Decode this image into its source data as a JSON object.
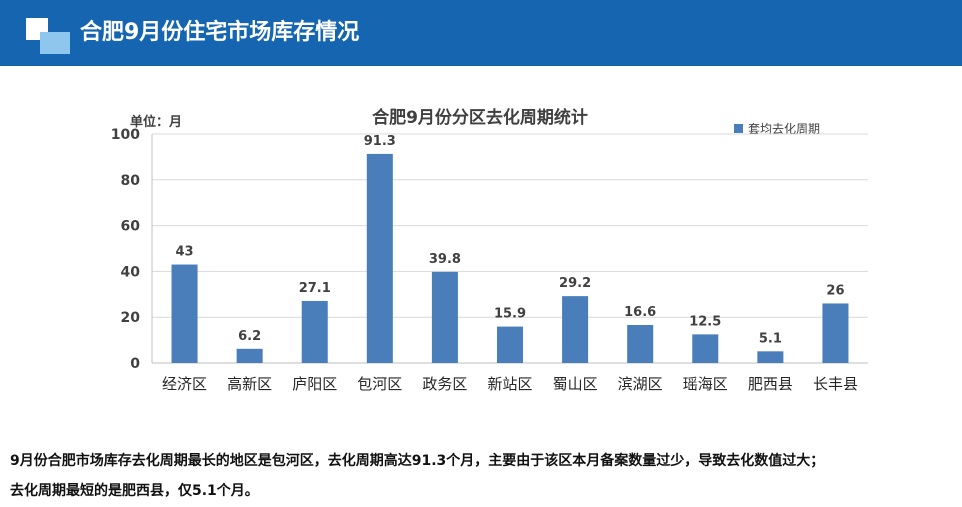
{
  "header": {
    "title": "合肥9月份住宅市场库存情况"
  },
  "chart_data": {
    "type": "bar",
    "title": "合肥9月份分区去化周期统计",
    "unit_label": "单位：月",
    "categories": [
      "经济区",
      "高新区",
      "庐阳区",
      "包河区",
      "政务区",
      "新站区",
      "蜀山区",
      "滨湖区",
      "瑶海区",
      "肥西县",
      "长丰县"
    ],
    "series": [
      {
        "name": "套均去化周期",
        "values": [
          43,
          6.2,
          27.1,
          91.3,
          39.8,
          15.9,
          29.2,
          16.6,
          12.5,
          5.1,
          26
        ],
        "color": "#4a7ebb"
      }
    ],
    "data_labels": [
      "43",
      "6.2",
      "27.1",
      "91.3",
      "39.8",
      "15.9",
      "29.2",
      "16.6",
      "12.5",
      "5.1",
      "26"
    ],
    "ylim": [
      0,
      100
    ],
    "yticks": [
      0,
      20,
      40,
      60,
      80,
      100
    ],
    "grid": true,
    "legend_position": "top-right"
  },
  "summary": {
    "line1": "9月份合肥市场库存去化周期最长的地区是包河区，去化周期高达91.3个月，主要由于该区本月备案数量过少，导致去化数值过大；",
    "line2": "去化周期最短的是肥西县，仅5.1个月。"
  },
  "colors": {
    "header_bg": "#1565b0",
    "bar": "#4a7ebb",
    "grid": "#d9d9d9"
  }
}
